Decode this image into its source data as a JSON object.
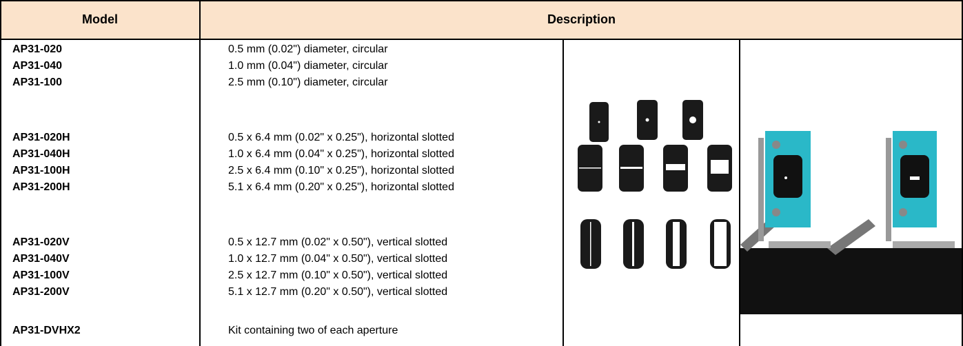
{
  "table": {
    "header": [
      "Model",
      "Description"
    ],
    "groups": [
      [
        [
          "AP31-020",
          "0.5 mm (0.02\") diameter, circular"
        ],
        [
          "AP31-040",
          "1.0 mm (0.04\") diameter, circular"
        ],
        [
          "AP31-100",
          "2.5 mm (0.10\") diameter, circular"
        ]
      ],
      [
        [
          "AP31-020H",
          "0.5 x 6.4 mm (0.02\" x 0.25\"), horizontal slotted"
        ],
        [
          "AP31-040H",
          "1.0 x 6.4 mm (0.04\" x 0.25\"), horizontal slotted"
        ],
        [
          "AP31-100H",
          "2.5 x 6.4 mm (0.10\" x 0.25\"), horizontal slotted"
        ],
        [
          "AP31-200H",
          "5.1 x 6.4 mm (0.20\" x 0.25\"), horizontal slotted"
        ]
      ],
      [
        [
          "AP31-020V",
          "0.5 x 12.7 mm (0.02\" x 0.50\"), vertical slotted"
        ],
        [
          "AP31-040V",
          "1.0 x 12.7 mm (0.04\" x 0.50\"), vertical slotted"
        ],
        [
          "AP31-100V",
          "2.5 x 12.7 mm (0.10\" x 0.50\"), vertical slotted"
        ],
        [
          "AP31-200V",
          "5.1 x 12.7 mm (0.20\" x 0.50\"), vertical slotted"
        ]
      ],
      [
        [
          "AP31-DVHX2",
          "Kit containing two of each aperture"
        ]
      ]
    ]
  }
}
